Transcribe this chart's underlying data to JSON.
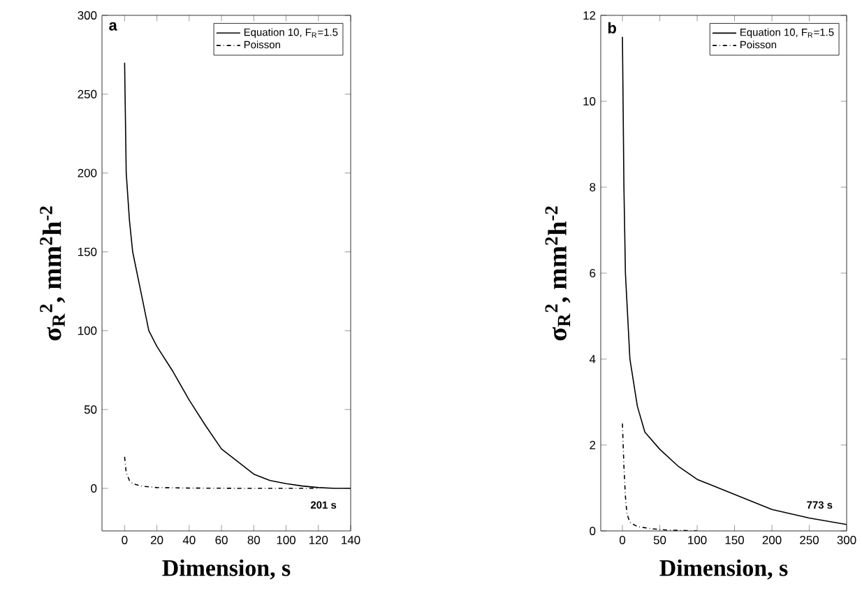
{
  "chart_data": [
    {
      "type": "line",
      "xlabel": "Dimension, s",
      "ylabel": "σ$_{R}$$^{2}$, mm$^{2}$h$^{-2}$",
      "annotations": [
        "a",
        "201 s"
      ],
      "xlim": [
        -14,
        140
      ],
      "ylim": [
        -27,
        300
      ],
      "xticks": [
        0,
        20,
        40,
        60,
        80,
        100,
        120,
        140
      ],
      "yticks": [
        0,
        50,
        100,
        150,
        200,
        250,
        300
      ],
      "legend": "top right",
      "grid": false,
      "series": [
        {
          "name": "Equation 10, F$_{R}$=1.5",
          "color": "#000000",
          "line_style": "solid",
          "x": [
            0,
            1,
            3,
            5,
            10,
            15,
            20,
            30,
            40,
            50,
            60,
            70,
            80,
            90,
            100,
            110,
            120,
            130,
            140
          ],
          "values": [
            270,
            200,
            170,
            150,
            125,
            100,
            90,
            74,
            56,
            40,
            25,
            17,
            9,
            5,
            3,
            1.5,
            0.5,
            0,
            0
          ]
        },
        {
          "name": "Poisson",
          "color": "#000000",
          "line_style": "dashdot",
          "x": [
            0,
            1,
            3,
            5,
            10,
            20,
            40,
            80,
            120
          ],
          "values": [
            20,
            10,
            5,
            3,
            1.5,
            0.5,
            0.2,
            0,
            0
          ]
        }
      ]
    },
    {
      "type": "line",
      "xlabel": "Dimension, s",
      "ylabel": "σ$_{R}$$^{2}$, mm$^{2}$h$^{-2}$",
      "annotations": [
        "b",
        "773 s"
      ],
      "xlim": [
        -29,
        300
      ],
      "ylim": [
        0,
        12
      ],
      "xticks": [
        0,
        50,
        100,
        150,
        200,
        250,
        300
      ],
      "yticks": [
        0,
        2,
        4,
        6,
        8,
        10,
        12
      ],
      "legend": "top right",
      "grid": false,
      "series": [
        {
          "name": "Equation 10, F$_{R}$=1.5",
          "color": "#000000",
          "line_style": "solid",
          "x": [
            0,
            2,
            4,
            10,
            20,
            30,
            50,
            75,
            100,
            150,
            200,
            250,
            300
          ],
          "values": [
            11.5,
            8,
            6,
            4.0,
            2.9,
            2.3,
            1.9,
            1.5,
            1.2,
            0.85,
            0.5,
            0.3,
            0.15
          ]
        },
        {
          "name": "Poisson",
          "color": "#000000",
          "line_style": "dashdot",
          "x": [
            0,
            2,
            4,
            6,
            10,
            20,
            40,
            60,
            100
          ],
          "values": [
            2.5,
            1.5,
            0.8,
            0.4,
            0.2,
            0.1,
            0.05,
            0.02,
            0
          ]
        }
      ]
    }
  ]
}
